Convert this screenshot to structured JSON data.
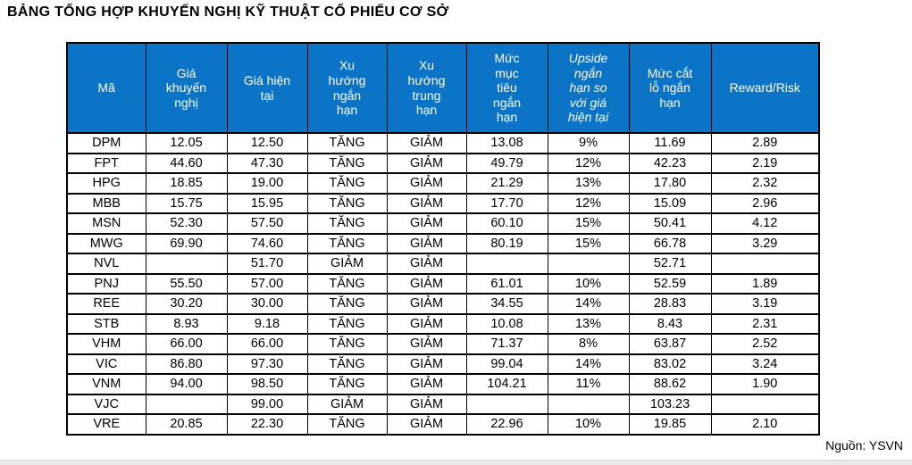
{
  "title": "BẢNG TỔNG HỢP KHUYẾN NGHỊ KỸ THUẬT CỔ PHIẾU CƠ SỞ",
  "source_note": "Nguồn: YSVN",
  "colors": {
    "header_bg": "#0B74C6",
    "header_text": "#FFFFFF",
    "grid_border": "#000000",
    "bottom_strip": "#E9E9E9"
  },
  "table": {
    "columns": [
      {
        "label": "Mã",
        "italic": false
      },
      {
        "label": "Giá\nkhuyến\nnghị",
        "italic": false
      },
      {
        "label": "Giá hiện\ntại",
        "italic": false
      },
      {
        "label": "Xu\nhướng\nngắn\nhạn",
        "italic": false
      },
      {
        "label": "Xu\nhướng\ntrung\nhạn",
        "italic": false
      },
      {
        "label": "Mức\nmục\ntiêu\nngắn\nhạn",
        "italic": false
      },
      {
        "label": "Upside\nngắn\nhạn so\nvới giá\nhiện tại",
        "italic": true
      },
      {
        "label": "Mức cắt\nlỗ ngắn\nhạn",
        "italic": false
      },
      {
        "label": "Reward/Risk",
        "italic": false
      }
    ],
    "rows": [
      [
        "DPM",
        "12.05",
        "12.50",
        "TĂNG",
        "GIẢM",
        "13.08",
        "9%",
        "11.69",
        "2.89"
      ],
      [
        "FPT",
        "44.60",
        "47.30",
        "TĂNG",
        "GIẢM",
        "49.79",
        "12%",
        "42.23",
        "2.19"
      ],
      [
        "HPG",
        "18.85",
        "19.00",
        "TĂNG",
        "GIẢM",
        "21.29",
        "13%",
        "17.80",
        "2.32"
      ],
      [
        "MBB",
        "15.75",
        "15.95",
        "TĂNG",
        "GIẢM",
        "17.70",
        "12%",
        "15.09",
        "2.96"
      ],
      [
        "MSN",
        "52.30",
        "57.50",
        "TĂNG",
        "GIẢM",
        "60.10",
        "15%",
        "50.41",
        "4.12"
      ],
      [
        "MWG",
        "69.90",
        "74.60",
        "TĂNG",
        "GIẢM",
        "80.19",
        "15%",
        "66.78",
        "3.29"
      ],
      [
        "NVL",
        "",
        "51.70",
        "GIẢM",
        "GIẢM",
        "",
        "",
        "52.71",
        ""
      ],
      [
        "PNJ",
        "55.50",
        "57.00",
        "TĂNG",
        "GIẢM",
        "61.01",
        "10%",
        "52.59",
        "1.89"
      ],
      [
        "REE",
        "30.20",
        "30.00",
        "TĂNG",
        "GIẢM",
        "34.55",
        "14%",
        "28.83",
        "3.19"
      ],
      [
        "STB",
        "8.93",
        "9.18",
        "TĂNG",
        "GIẢM",
        "10.08",
        "13%",
        "8.43",
        "2.31"
      ],
      [
        "VHM",
        "66.00",
        "66.00",
        "TĂNG",
        "GIẢM",
        "71.37",
        "8%",
        "63.87",
        "2.52"
      ],
      [
        "VIC",
        "86.80",
        "97.30",
        "TĂNG",
        "GIẢM",
        "99.04",
        "14%",
        "83.02",
        "3.24"
      ],
      [
        "VNM",
        "94.00",
        "98.50",
        "TĂNG",
        "GIẢM",
        "104.21",
        "11%",
        "88.62",
        "1.90"
      ],
      [
        "VJC",
        "",
        "99.00",
        "GIẢM",
        "GIẢM",
        "",
        "",
        "103.23",
        ""
      ],
      [
        "VRE",
        "20.85",
        "22.30",
        "TĂNG",
        "GIẢM",
        "22.96",
        "10%",
        "19.85",
        "2.10"
      ]
    ]
  }
}
